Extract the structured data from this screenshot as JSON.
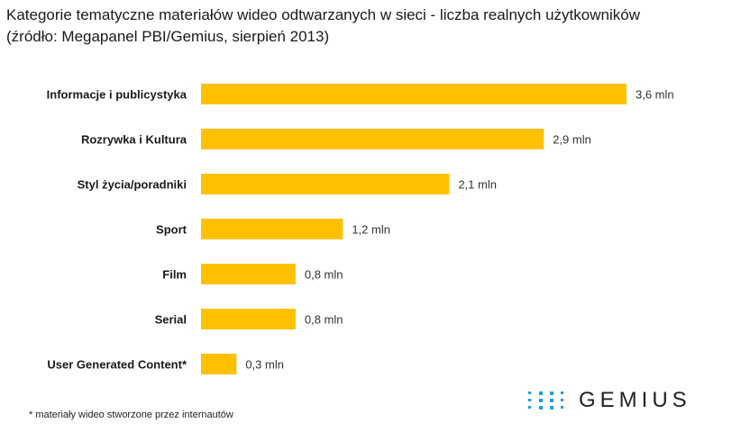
{
  "header": {
    "title_line1": "Kategorie tematyczne materiałów wideo odtwarzanych w sieci - liczba realnych użytkowników",
    "title_line2": "(źródło: Megapanel PBI/Gemius, sierpień 2013)"
  },
  "chart_data": {
    "type": "bar",
    "orientation": "horizontal",
    "categories": [
      "Informacje i publicystyka",
      "Rozrywka i Kultura",
      "Styl życia/poradniki",
      "Sport",
      "Film",
      "Serial",
      "User Generated Content*"
    ],
    "values": [
      3.6,
      2.9,
      2.1,
      1.2,
      0.8,
      0.8,
      0.3
    ],
    "value_labels": [
      "3,6 mln",
      "2,9 mln",
      "2,1 mln",
      "1,2 mln",
      "0,8 mln",
      "0,8 mln",
      "0,3 mln"
    ],
    "title": "Kategorie tematyczne materiałów wideo odtwarzanych w sieci - liczba realnych użytkowników",
    "xlabel": "",
    "ylabel": "",
    "xlim": [
      0,
      3.6
    ],
    "grid": false,
    "bar_color": "#FFC000"
  },
  "footnote": "* materiały wideo stworzone przez internautów",
  "logo": {
    "text": "GEMIUS",
    "dot_color": "#1f9fd8"
  }
}
